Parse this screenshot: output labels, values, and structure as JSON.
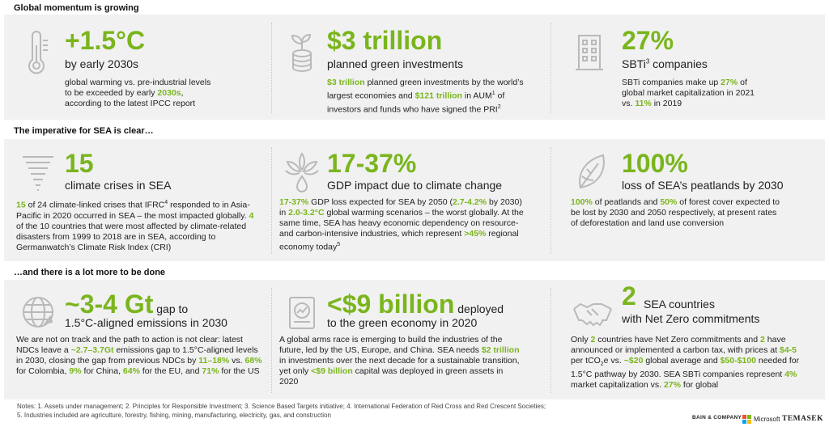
{
  "headings": {
    "top": "Global momentum is growing",
    "middle": "The imperative for SEA is clear…",
    "bottom": "…and there is a lot more to be done"
  },
  "cards": {
    "warming": {
      "big": "+1.5°C",
      "sub": "by early 2030s",
      "desc": [
        "global warming vs. pre-industrial levels",
        "to be exceeded by early ",
        "2030s",
        ",",
        "according to the latest IPCC report"
      ]
    },
    "investments": {
      "big": "$3 trillion",
      "sub": "planned green investments",
      "d1": "$3 trillion",
      "d2": " planned green investments by the world’s largest economies and ",
      "d3": "$121 trillion",
      "d4": " in AUM",
      "d4sup": "1",
      "d5": " of investors and funds who have signed the PRI",
      "d5sup": "2"
    },
    "sbti": {
      "big": "27%",
      "sub": "SBTi",
      "subsup": "3",
      "sub2": " companies",
      "d1": "SBTi companies make up ",
      "d2": "27%",
      "d3": " of global market capitalization in 2021 vs. ",
      "d4": "11%",
      "d5": " in 2019"
    },
    "crises": {
      "big": "15",
      "sub": "climate crises in SEA",
      "d1": "15",
      "d2": " of 24 climate-linked crises that IFRC",
      "d2sup": "4",
      "d3": " responded to in Asia-Pacific in 2020 occurred in SEA – the most impacted globally. ",
      "d4": "4",
      "d5": " of the 10 countries that were most affected by climate-related disasters from 1999 to 2018 are in SEA, according to Germanwatch’s Climate Risk Index (CRI)"
    },
    "gdp": {
      "big": "17-37%",
      "sub": "GDP impact due to climate change",
      "d1": "17-37%",
      "d2": " GDP loss expected for SEA by 2050 (",
      "d3": "2.7-4.2%",
      "d4": " by 2030) in ",
      "d5": "2.0-3.2°C",
      "d6": " global warming scenarios – the worst globally. At the same time, SEA has heavy economic dependency on resource- and carbon-intensive industries, which represent ",
      "d7": ">45%",
      "d8": " regional economy today",
      "d8sup": "5"
    },
    "peatlands": {
      "big": "100%",
      "sub": "loss of SEA’s peatlands by 2030",
      "d1": "100%",
      "d2": " of peatlands and ",
      "d3": "50%",
      "d4": " of forest cover expected to be lost by 2030 and 2050 respectively, at present rates of deforestation and land use conversion"
    },
    "gap": {
      "big": "~3-4 Gt",
      "big_suffix": " gap to",
      "sub": "1.5°C-aligned emissions in 2030",
      "d1": "We are not on track and the path to action is not clear: latest NDCs leave a ",
      "d2": "~2.7–3.7Gt",
      "d3": " emissions gap to 1.5°C-aligned levels in 2030, closing the gap from previous NDCs by ",
      "d4": "11–18%",
      "d5": " vs. ",
      "d6": "68%",
      "d7": " for Colombia, ",
      "d8": "9%",
      "d9": " for China, ",
      "d10": "64%",
      "d11": " for the EU, and ",
      "d12": "71%",
      "d13": " for the US"
    },
    "billion": {
      "big": "<$9 billion",
      "big_suffix": " deployed",
      "sub": "to the green economy in 2020",
      "d1": "A global arms race is emerging to build the industries of the future, led by the US, Europe, and China. SEA needs ",
      "d2": "$2 trillion",
      "d3": " in investments over the next decade for a sustainable transition, yet only ",
      "d4": "<$9 billion",
      "d5": " capital was deployed in green assets in 2020"
    },
    "netzero": {
      "big": "2",
      "big_suffix": "SEA countries",
      "sub": "with Net Zero commitments",
      "d1": "Only ",
      "d2": "2",
      "d3": " countries have Net Zero commitments and ",
      "d4": "2",
      "d5": " have announced or implemented a carbon tax, with prices at ",
      "d6": "$4-5",
      "d7": " per tCO",
      "d7sub": "2",
      "d8": "e vs. ",
      "d9": "~$20",
      "d10": " global average and ",
      "d11": "$50-$100",
      "d12": " needed for 1.5°C pathway by 2030. SEA SBTi companies represent ",
      "d13": "4%",
      "d14": " market capitalization vs. ",
      "d15": "27%",
      "d16": " for global"
    }
  },
  "notes": {
    "line1": "Notes: 1. Assets under management; 2. Principles for Responsible Investment; 3. Science Based Targets initiative; 4. International Federation of Red Cross and Red Crescent Societies;",
    "line2": "5. Industries included are agriculture, forestry, fishing, mining, manufacturing, electricity, gas, and construction"
  },
  "logos": {
    "bain": "BAIN & COMPANY",
    "microsoft": "Microsoft",
    "temasek": "TEMASEK"
  },
  "colors": {
    "accent": "#7ab51d",
    "band": "#f1f1f1",
    "icon": "#b9b9b9"
  },
  "icons": [
    "thermometer-icon",
    "plant-coins-icon",
    "building-icon",
    "tornado-icon",
    "leaf-drop-icon",
    "leaf-icon",
    "globe-icon",
    "chart-document-icon",
    "handshake-icon"
  ]
}
